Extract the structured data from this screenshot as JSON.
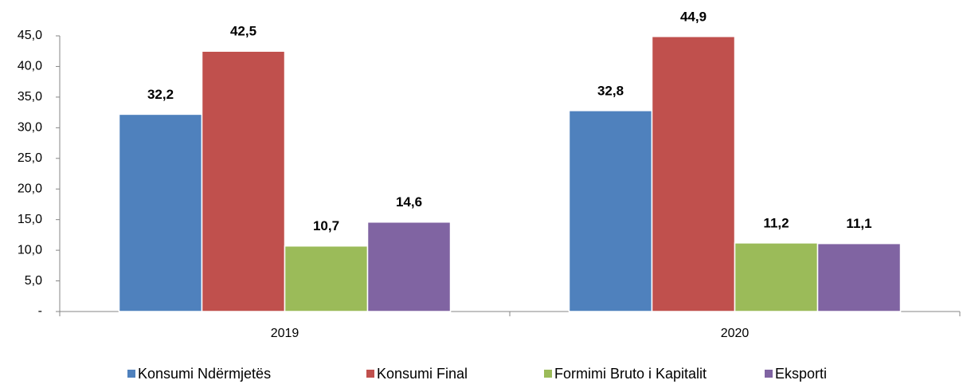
{
  "chart_data": {
    "type": "bar",
    "categories": [
      "2019",
      "2020"
    ],
    "series": [
      {
        "name": "Konsumi Ndërmjetës",
        "color": "#4f81bd",
        "values": [
          32.2,
          32.8
        ],
        "value_labels": [
          "32,2",
          "32,8"
        ]
      },
      {
        "name": "Konsumi Final",
        "color": "#c0504d",
        "values": [
          42.5,
          44.9
        ],
        "value_labels": [
          "42,5",
          "44,9"
        ]
      },
      {
        "name": "Formimi Bruto i Kapitalit",
        "color": "#9bbb59",
        "values": [
          10.7,
          11.2
        ],
        "value_labels": [
          "10,7",
          "11,2"
        ]
      },
      {
        "name": "Eksporti",
        "color": "#8064a2",
        "values": [
          14.6,
          11.1
        ],
        "value_labels": [
          "14,6",
          "11,1"
        ]
      }
    ],
    "ylim": [
      0,
      45
    ],
    "yticks": [
      {
        "value": 0,
        "label": "-"
      },
      {
        "value": 5,
        "label": "5,0"
      },
      {
        "value": 10,
        "label": "10,0"
      },
      {
        "value": 15,
        "label": "15,0"
      },
      {
        "value": 20,
        "label": "20,0"
      },
      {
        "value": 25,
        "label": "25,0"
      },
      {
        "value": 30,
        "label": "30,0"
      },
      {
        "value": 35,
        "label": "35,0"
      },
      {
        "value": 40,
        "label": "40,0"
      },
      {
        "value": 45,
        "label": "45,0"
      }
    ],
    "legend": "bottom"
  }
}
